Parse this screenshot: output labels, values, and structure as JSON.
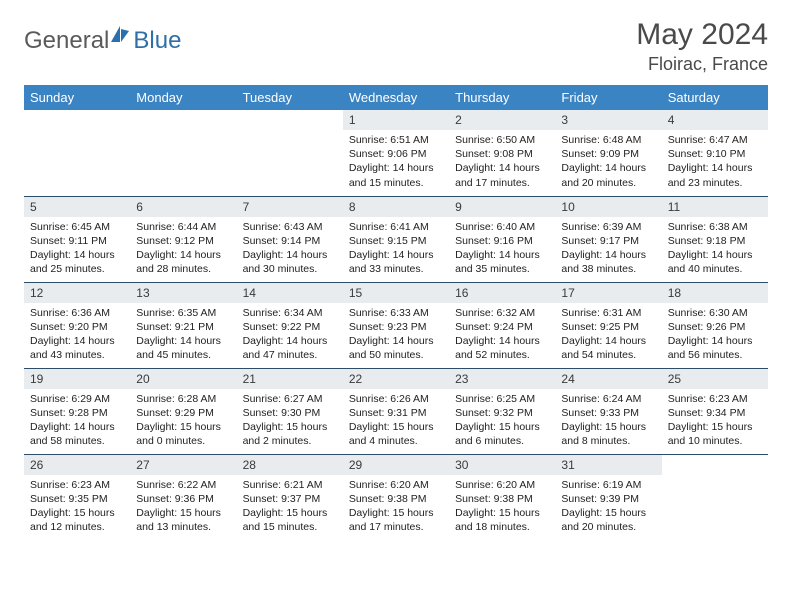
{
  "brand": {
    "part1": "General",
    "part2": "Blue"
  },
  "title": "May 2024",
  "location": "Floirac, France",
  "colors": {
    "header_bg": "#3b84c4",
    "header_text": "#ffffff",
    "daynum_bg": "#e8ecef",
    "row_border": "#2b4d69",
    "brand_gray": "#5a5a5a",
    "brand_blue": "#2f6fa8",
    "logo_blue": "#2a6fb0"
  },
  "daysOfWeek": [
    "Sunday",
    "Monday",
    "Tuesday",
    "Wednesday",
    "Thursday",
    "Friday",
    "Saturday"
  ],
  "weeks": [
    [
      null,
      null,
      null,
      {
        "n": "1",
        "sr": "6:51 AM",
        "ss": "9:06 PM",
        "dl": "14 hours and 15 minutes."
      },
      {
        "n": "2",
        "sr": "6:50 AM",
        "ss": "9:08 PM",
        "dl": "14 hours and 17 minutes."
      },
      {
        "n": "3",
        "sr": "6:48 AM",
        "ss": "9:09 PM",
        "dl": "14 hours and 20 minutes."
      },
      {
        "n": "4",
        "sr": "6:47 AM",
        "ss": "9:10 PM",
        "dl": "14 hours and 23 minutes."
      }
    ],
    [
      {
        "n": "5",
        "sr": "6:45 AM",
        "ss": "9:11 PM",
        "dl": "14 hours and 25 minutes."
      },
      {
        "n": "6",
        "sr": "6:44 AM",
        "ss": "9:12 PM",
        "dl": "14 hours and 28 minutes."
      },
      {
        "n": "7",
        "sr": "6:43 AM",
        "ss": "9:14 PM",
        "dl": "14 hours and 30 minutes."
      },
      {
        "n": "8",
        "sr": "6:41 AM",
        "ss": "9:15 PM",
        "dl": "14 hours and 33 minutes."
      },
      {
        "n": "9",
        "sr": "6:40 AM",
        "ss": "9:16 PM",
        "dl": "14 hours and 35 minutes."
      },
      {
        "n": "10",
        "sr": "6:39 AM",
        "ss": "9:17 PM",
        "dl": "14 hours and 38 minutes."
      },
      {
        "n": "11",
        "sr": "6:38 AM",
        "ss": "9:18 PM",
        "dl": "14 hours and 40 minutes."
      }
    ],
    [
      {
        "n": "12",
        "sr": "6:36 AM",
        "ss": "9:20 PM",
        "dl": "14 hours and 43 minutes."
      },
      {
        "n": "13",
        "sr": "6:35 AM",
        "ss": "9:21 PM",
        "dl": "14 hours and 45 minutes."
      },
      {
        "n": "14",
        "sr": "6:34 AM",
        "ss": "9:22 PM",
        "dl": "14 hours and 47 minutes."
      },
      {
        "n": "15",
        "sr": "6:33 AM",
        "ss": "9:23 PM",
        "dl": "14 hours and 50 minutes."
      },
      {
        "n": "16",
        "sr": "6:32 AM",
        "ss": "9:24 PM",
        "dl": "14 hours and 52 minutes."
      },
      {
        "n": "17",
        "sr": "6:31 AM",
        "ss": "9:25 PM",
        "dl": "14 hours and 54 minutes."
      },
      {
        "n": "18",
        "sr": "6:30 AM",
        "ss": "9:26 PM",
        "dl": "14 hours and 56 minutes."
      }
    ],
    [
      {
        "n": "19",
        "sr": "6:29 AM",
        "ss": "9:28 PM",
        "dl": "14 hours and 58 minutes."
      },
      {
        "n": "20",
        "sr": "6:28 AM",
        "ss": "9:29 PM",
        "dl": "15 hours and 0 minutes."
      },
      {
        "n": "21",
        "sr": "6:27 AM",
        "ss": "9:30 PM",
        "dl": "15 hours and 2 minutes."
      },
      {
        "n": "22",
        "sr": "6:26 AM",
        "ss": "9:31 PM",
        "dl": "15 hours and 4 minutes."
      },
      {
        "n": "23",
        "sr": "6:25 AM",
        "ss": "9:32 PM",
        "dl": "15 hours and 6 minutes."
      },
      {
        "n": "24",
        "sr": "6:24 AM",
        "ss": "9:33 PM",
        "dl": "15 hours and 8 minutes."
      },
      {
        "n": "25",
        "sr": "6:23 AM",
        "ss": "9:34 PM",
        "dl": "15 hours and 10 minutes."
      }
    ],
    [
      {
        "n": "26",
        "sr": "6:23 AM",
        "ss": "9:35 PM",
        "dl": "15 hours and 12 minutes."
      },
      {
        "n": "27",
        "sr": "6:22 AM",
        "ss": "9:36 PM",
        "dl": "15 hours and 13 minutes."
      },
      {
        "n": "28",
        "sr": "6:21 AM",
        "ss": "9:37 PM",
        "dl": "15 hours and 15 minutes."
      },
      {
        "n": "29",
        "sr": "6:20 AM",
        "ss": "9:38 PM",
        "dl": "15 hours and 17 minutes."
      },
      {
        "n": "30",
        "sr": "6:20 AM",
        "ss": "9:38 PM",
        "dl": "15 hours and 18 minutes."
      },
      {
        "n": "31",
        "sr": "6:19 AM",
        "ss": "9:39 PM",
        "dl": "15 hours and 20 minutes."
      },
      null
    ]
  ],
  "labels": {
    "sunrise": "Sunrise:",
    "sunset": "Sunset:",
    "daylight": "Daylight:"
  }
}
